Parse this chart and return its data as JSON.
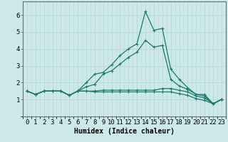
{
  "xlabel": "Humidex (Indice chaleur)",
  "x": [
    0,
    1,
    2,
    3,
    4,
    5,
    6,
    7,
    8,
    9,
    10,
    11,
    12,
    13,
    14,
    15,
    16,
    17,
    18,
    19,
    20,
    21,
    22,
    23
  ],
  "lines": [
    [
      1.5,
      1.3,
      1.5,
      1.5,
      1.5,
      1.25,
      1.5,
      2.0,
      2.5,
      2.6,
      3.05,
      3.6,
      4.0,
      4.3,
      6.2,
      5.1,
      5.2,
      2.8,
      2.2,
      1.7,
      1.3,
      1.3,
      0.75,
      1.0
    ],
    [
      1.5,
      1.3,
      1.5,
      1.5,
      1.5,
      1.25,
      1.5,
      1.75,
      1.9,
      2.5,
      2.7,
      3.1,
      3.5,
      3.8,
      4.5,
      4.1,
      4.2,
      2.2,
      1.8,
      1.6,
      1.3,
      1.2,
      0.75,
      1.0
    ],
    [
      1.5,
      1.3,
      1.5,
      1.5,
      1.5,
      1.25,
      1.5,
      1.5,
      1.5,
      1.55,
      1.55,
      1.55,
      1.55,
      1.55,
      1.55,
      1.55,
      1.65,
      1.65,
      1.55,
      1.45,
      1.2,
      1.1,
      0.75,
      1.0
    ],
    [
      1.5,
      1.3,
      1.5,
      1.5,
      1.5,
      1.25,
      1.5,
      1.5,
      1.45,
      1.45,
      1.45,
      1.45,
      1.45,
      1.45,
      1.45,
      1.45,
      1.45,
      1.45,
      1.35,
      1.25,
      1.05,
      0.95,
      0.75,
      1.0
    ]
  ],
  "line_color": "#1a7a6e",
  "marker": "+",
  "markersize": 3,
  "markeredgewidth": 0.8,
  "bg_color": "#cce8e8",
  "grid_color": "#b8d8d8",
  "ylim": [
    0,
    6.8
  ],
  "yticks": [
    1,
    2,
    3,
    4,
    5,
    6
  ],
  "xtick_labels": [
    "0",
    "1",
    "2",
    "3",
    "4",
    "5",
    "6",
    "7",
    "8",
    "9",
    "10",
    "11",
    "12",
    "13",
    "14",
    "15",
    "16",
    "17",
    "18",
    "19",
    "20",
    "21",
    "22",
    "23"
  ],
  "linewidth": 0.9,
  "xlabel_fontsize": 7,
  "tick_fontsize": 6.5
}
